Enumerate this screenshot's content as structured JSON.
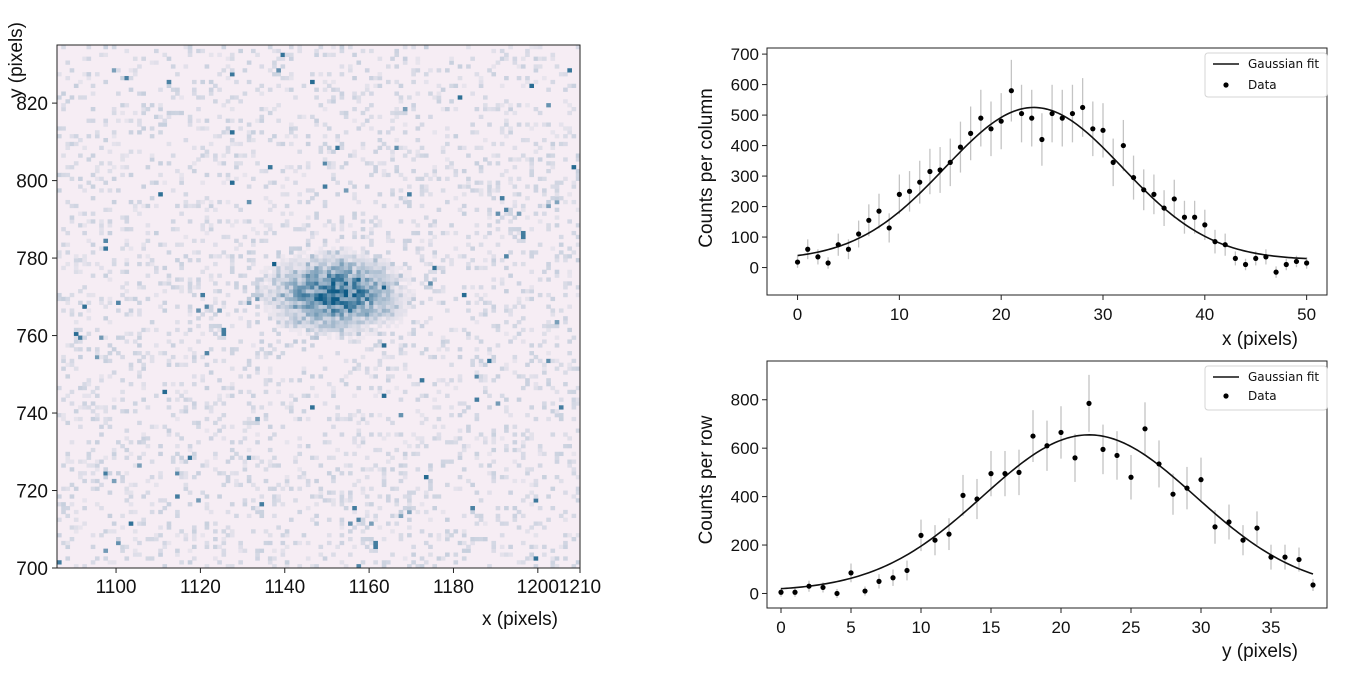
{
  "chart_data": [
    {
      "type": "heatmap",
      "xlabel": "x (pixels)",
      "ylabel": "y (pixels)",
      "xlim": [
        1086,
        1210
      ],
      "ylim": [
        700,
        835
      ],
      "xticks": [
        1100,
        1120,
        1140,
        1160,
        1180,
        1200,
        1210
      ],
      "yticks": [
        700,
        720,
        740,
        760,
        780,
        800,
        820
      ],
      "spot": {
        "center_x": 1152,
        "center_y": 771,
        "sigma_x": 8,
        "sigma_y": 5
      },
      "colormap": {
        "low": "#fbf0f6",
        "high": "#0e5b86"
      }
    },
    {
      "type": "scatter",
      "xlabel": "x (pixels)",
      "ylabel": "Counts per column",
      "xlim": [
        -3,
        52
      ],
      "ylim": [
        -90,
        720
      ],
      "xticks": [
        0,
        10,
        20,
        30,
        40,
        50
      ],
      "yticks": [
        0,
        100,
        200,
        300,
        400,
        500,
        600,
        700
      ],
      "legend": [
        "Gaussian fit",
        "Data"
      ],
      "legend_position": "top-right",
      "x": [
        0,
        1,
        2,
        3,
        4,
        5,
        6,
        7,
        8,
        9,
        10,
        11,
        12,
        13,
        14,
        15,
        16,
        17,
        18,
        19,
        20,
        21,
        22,
        23,
        24,
        25,
        26,
        27,
        28,
        29,
        30,
        31,
        32,
        33,
        34,
        35,
        36,
        37,
        38,
        39,
        40,
        41,
        42,
        43,
        44,
        45,
        46,
        47,
        48,
        49,
        50
      ],
      "y": [
        18,
        60,
        35,
        15,
        75,
        60,
        110,
        155,
        185,
        130,
        240,
        250,
        280,
        315,
        320,
        345,
        395,
        440,
        490,
        455,
        480,
        580,
        505,
        490,
        420,
        505,
        490,
        505,
        525,
        455,
        450,
        345,
        400,
        295,
        255,
        240,
        195,
        225,
        165,
        165,
        140,
        85,
        75,
        30,
        10,
        30,
        35,
        -15,
        10,
        20,
        15
      ],
      "fit": {
        "amplitude": 500,
        "mean": 23.2,
        "sigma": 8.7,
        "offset": 25
      }
    },
    {
      "type": "scatter",
      "xlabel": "y (pixels)",
      "ylabel": "Counts per row",
      "xlim": [
        -1,
        39
      ],
      "ylim": [
        -60,
        960
      ],
      "xticks": [
        0,
        5,
        10,
        15,
        20,
        25,
        30,
        35
      ],
      "yticks": [
        0,
        200,
        400,
        600,
        800
      ],
      "legend": [
        "Gaussian fit",
        "Data"
      ],
      "legend_position": "top-right",
      "x": [
        0,
        1,
        2,
        3,
        4,
        5,
        6,
        7,
        8,
        9,
        10,
        11,
        12,
        13,
        14,
        15,
        16,
        17,
        18,
        19,
        20,
        21,
        22,
        23,
        24,
        25,
        26,
        27,
        28,
        29,
        30,
        31,
        32,
        33,
        34,
        35,
        36,
        37,
        38
      ],
      "y": [
        5,
        5,
        30,
        25,
        0,
        85,
        10,
        50,
        65,
        95,
        240,
        220,
        245,
        405,
        390,
        495,
        495,
        500,
        650,
        610,
        665,
        560,
        785,
        595,
        570,
        480,
        680,
        535,
        410,
        435,
        470,
        275,
        295,
        220,
        270,
        150,
        150,
        140,
        35
      ],
      "fit": {
        "amplitude": 645,
        "mean": 22.0,
        "sigma": 7.6,
        "offset": 10
      }
    }
  ],
  "colors": {
    "scatter": "#000000",
    "errorbar": "#c4c4c4",
    "fit": "#111111"
  }
}
